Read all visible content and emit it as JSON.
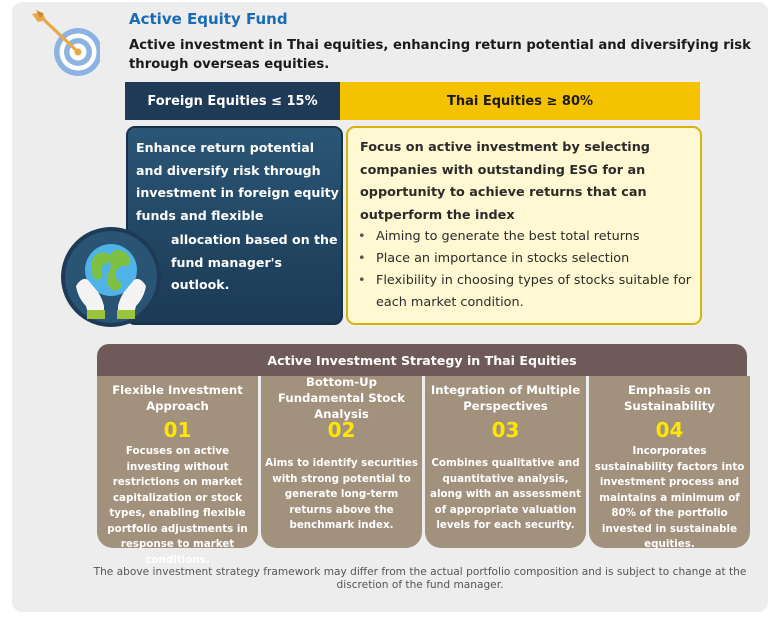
{
  "header": {
    "title": "Active Equity Fund",
    "subtitle": "Active investment in Thai equities, enhancing return potential and diversifying risk through overseas equities."
  },
  "allocation": {
    "foreign_label": "Foreign Equities ≤ 15%",
    "thai_label": "Thai Equities ≥ 80%"
  },
  "foreign_card": {
    "text_part1": "Enhance return potential and diversify risk through investment in foreign equity funds and flexible",
    "text_part2": "allocation based on the fund manager's outlook."
  },
  "thai_card": {
    "lead": "Focus on active investment by selecting companies with outstanding ESG for an opportunity to achieve returns that can outperform the index",
    "bullets": [
      "Aiming to generate the best total returns",
      "Place an importance in stocks selection",
      "Flexibility in choosing types of stocks suitable for each market condition."
    ]
  },
  "strategy": {
    "heading": "Active Investment Strategy in Thai Equities",
    "items": [
      {
        "title": "Flexible Investment Approach",
        "number": "01",
        "description": "Focuses on active investing without restrictions on market capitalization or stock types, enabling flexible portfolio adjustments in response to market conditions."
      },
      {
        "title": "Bottom-Up Fundamental Stock Analysis",
        "number": "02",
        "description": "Aims to identify securities with strong potential to generate long-term returns above the benchmark index."
      },
      {
        "title": "Integration of Multiple Perspectives",
        "number": "03",
        "description": "Combines qualitative and quantitative analysis, along with an assessment of appropriate valuation levels for each security."
      },
      {
        "title": "Emphasis on Sustainability",
        "number": "04",
        "description": "Incorporates sustainability factors into investment process and maintains a minimum of 80% of the portfolio invested in sustainable equities."
      }
    ]
  },
  "footnote": "The above investment strategy framework may differ from the actual portfolio composition and is subject to change at the discretion of the fund manager.",
  "colors": {
    "title_blue": "#1a6bb5",
    "navy": "#1f3a56",
    "gold": "#f5c200",
    "strategy_header": "#6e5b59",
    "strategy_card": "#a1917d",
    "number_yellow": "#ffe600"
  },
  "icons": {
    "header": "target-icon",
    "foreign": "globe-in-hands-icon"
  }
}
